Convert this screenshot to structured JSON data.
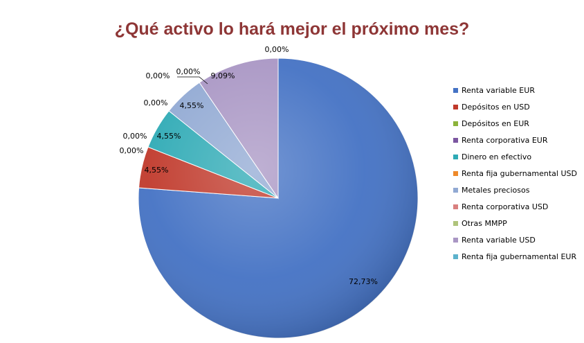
{
  "chart_data": {
    "type": "pie",
    "title": "¿Qué activo lo hará mejor el próximo mes?",
    "categories": [
      "Renta variable EUR",
      "Depósitos en USD",
      "Depósitos en EUR",
      "Renta corporativa EUR",
      "Dinero en efectivo",
      "Renta fija gubernamental USD",
      "Metales preciosos",
      "Renta corporativa USD",
      "Otras MMPP",
      "Renta variable USD",
      "Renta fija gubernamental EUR"
    ],
    "values": [
      72.73,
      4.55,
      0,
      0,
      4.55,
      0,
      4.55,
      0,
      0,
      9.09,
      0
    ],
    "labels": [
      "72,73%",
      "4,55%",
      "0,00%",
      "0,00%",
      "4,55%",
      "0,00%",
      "4,55%",
      "0,00%",
      "0,00%",
      "9,09%",
      "0,00%"
    ],
    "colors": [
      "#4472c4",
      "#c0392b",
      "#8cb33b",
      "#7b56a0",
      "#2eaab5",
      "#ee8a2a",
      "#91a9d3",
      "#d9807f",
      "#afc47b",
      "#a996c4",
      "#5cb2cc"
    ],
    "legend_position": "right"
  }
}
